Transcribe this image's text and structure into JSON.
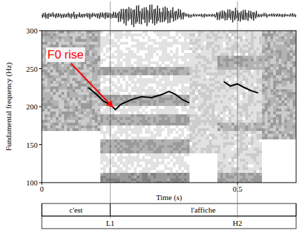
{
  "chart_data": {
    "type": "line",
    "x_label": "Time (s)",
    "y_label": "Fundamental frequency (Hz)",
    "xlim": [
      0,
      0.65
    ],
    "xticks": [
      0,
      0.5
    ],
    "ylim": [
      100,
      300
    ],
    "yticks": [
      100,
      150,
      200,
      250,
      300
    ],
    "x": [
      0.119,
      0.14,
      0.158,
      0.175,
      0.188,
      0.202,
      0.228,
      0.254,
      0.281,
      0.307,
      0.325,
      0.342,
      0.36,
      0.377,
      0.42,
      0.465,
      0.482,
      0.5,
      0.518,
      0.535,
      0.553
    ],
    "series": [
      {
        "color": "#000000",
        "values": [
          225,
          216,
          207,
          203,
          196,
          203,
          209,
          213,
          212,
          216,
          220,
          216,
          209,
          205,
          null,
          233,
          227,
          230,
          225,
          221,
          218
        ]
      }
    ],
    "annotation": {
      "text": "F0 rise",
      "color": "#ff0000",
      "x": 0.188,
      "y": 196
    },
    "tiers": [
      {
        "intervals": [
          {
            "text": "c'est",
            "start": 0,
            "end": 0.175
          },
          {
            "text": "l'affiche",
            "start": 0.175,
            "end": 0.65
          }
        ]
      },
      {
        "points": [
          {
            "text": "L1",
            "time": 0.175
          },
          {
            "text": "H2",
            "time": 0.5
          }
        ]
      }
    ]
  }
}
